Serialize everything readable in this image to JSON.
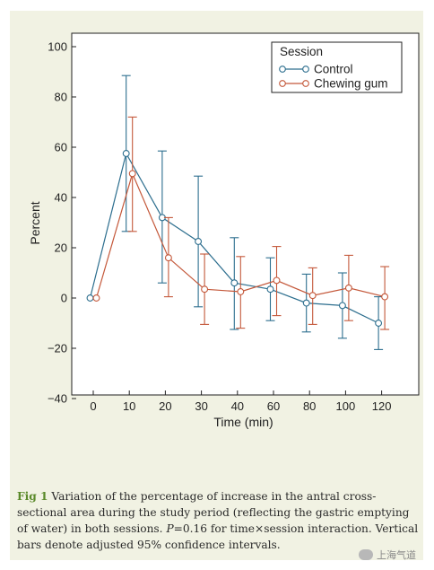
{
  "chart_data": {
    "type": "line",
    "categories": [
      "0",
      "10",
      "20",
      "30",
      "40",
      "60",
      "80",
      "100",
      "120"
    ],
    "xlabel": "Time (min)",
    "ylabel": "Percent",
    "ylim": [
      -40,
      100
    ],
    "yticks": [
      -40,
      -20,
      0,
      20,
      40,
      60,
      80,
      100
    ],
    "grid": false,
    "legend_title": "Session",
    "legend_position": "top-right",
    "series": [
      {
        "name": "Control",
        "color": "#2c6e8e",
        "values": [
          0,
          57.5,
          32,
          22.5,
          6,
          3.5,
          -2,
          -3,
          -10
        ],
        "ci_lower": [
          0,
          26.5,
          6,
          -3.5,
          -12.5,
          -9,
          -13.5,
          -16,
          -20.5
        ],
        "ci_upper": [
          0,
          88.5,
          58.5,
          48.5,
          24,
          16,
          9.5,
          10,
          0.5
        ]
      },
      {
        "name": "Chewing gum",
        "color": "#c4583a",
        "values": [
          0,
          49.5,
          16,
          3.5,
          2.5,
          7,
          1,
          4,
          0.5
        ],
        "ci_lower": [
          0,
          26.5,
          0.5,
          -10.5,
          -12,
          -7,
          -10.5,
          -9,
          -12.5
        ],
        "ci_upper": [
          0,
          72,
          32,
          17.5,
          16.5,
          20.5,
          12,
          17,
          12.5
        ]
      }
    ]
  },
  "caption": {
    "label": "Fig 1",
    "text_before_p": "Variation of the percentage of increase in the antral cross-sectional area during the study period (reflecting the gastric emptying of water) in both sessions. ",
    "p_letter": "P",
    "text_after_p": "=0.16 for time×session interaction. Vertical bars denote adjusted 95% confidence intervals."
  },
  "watermark": {
    "text": "上海气道"
  }
}
